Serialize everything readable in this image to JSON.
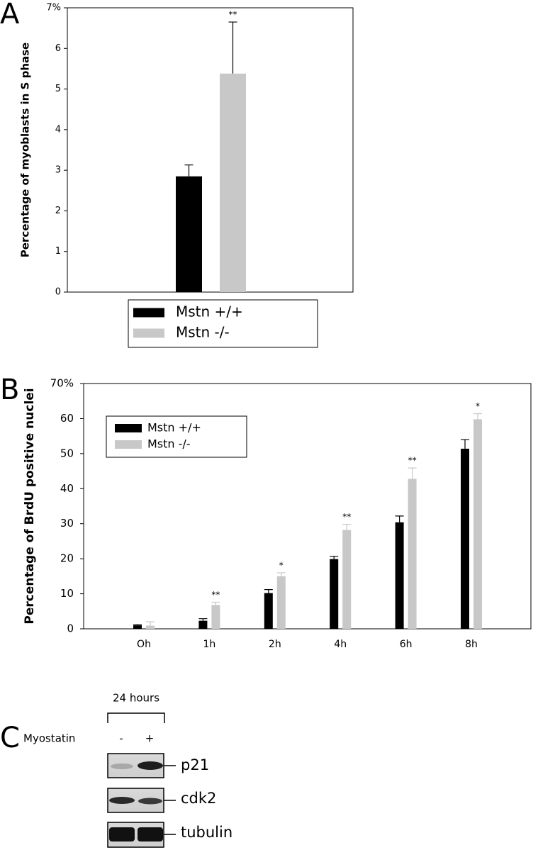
{
  "chart_data": [
    {
      "type": "bar",
      "panel": "A",
      "ylabel": "Percentage of myoblasts in S phase",
      "categories": [
        null
      ],
      "series": [
        {
          "name": "Mstn +/+",
          "color": "#000000",
          "values": [
            2.85
          ],
          "errors": [
            0.28
          ],
          "significance": [
            null
          ]
        },
        {
          "name": "Mstn -/-",
          "color": "#c8c8c8",
          "values": [
            5.38
          ],
          "errors": [
            1.27
          ],
          "significance": [
            "**"
          ]
        }
      ],
      "ylim": [
        0,
        7
      ],
      "yticks": [
        0,
        1,
        2,
        3,
        4,
        5,
        6,
        {
          "value": 7,
          "label": "7%"
        }
      ],
      "legend": "below"
    },
    {
      "type": "bar",
      "panel": "B",
      "ylabel": "Percentage of BrdU positive nuclei",
      "categories": [
        "Oh",
        "1h",
        "2h",
        "4h",
        "6h",
        "8h"
      ],
      "series": [
        {
          "name": "Mstn +/+",
          "color": "#000000",
          "values": [
            1.0,
            2.3,
            10.2,
            19.9,
            30.4,
            51.4
          ],
          "errors": [
            0.2,
            0.6,
            1.0,
            0.8,
            1.8,
            2.6
          ],
          "significance": [
            null,
            null,
            null,
            null,
            null,
            null
          ]
        },
        {
          "name": "Mstn -/-",
          "color": "#c8c8c8",
          "values": [
            0.9,
            6.8,
            15.0,
            28.2,
            42.8,
            59.8
          ],
          "errors": [
            1.1,
            0.8,
            1.0,
            1.6,
            3.1,
            1.6
          ],
          "significance": [
            null,
            "**",
            "*",
            "**",
            "**",
            "*"
          ]
        }
      ],
      "ylim": [
        0,
        70
      ],
      "yticks": [
        0,
        10,
        20,
        30,
        40,
        50,
        60,
        {
          "value": 70,
          "label": "70%"
        }
      ],
      "legend": "upper left"
    }
  ],
  "blot": {
    "panel": "C",
    "time": "24 hours",
    "treatment": "Myostatin",
    "lanes": [
      "-",
      "+"
    ],
    "bands": [
      "p21",
      "cdk2",
      "tubulin"
    ]
  }
}
